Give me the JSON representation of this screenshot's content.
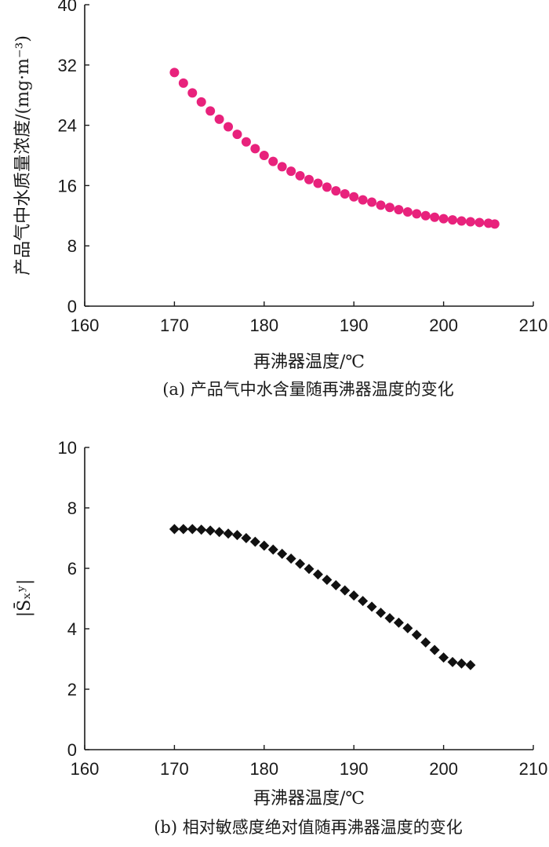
{
  "chart_data": [
    {
      "type": "scatter",
      "xlabel": "再沸器温度/℃",
      "ylabel": "产品气中水质量浓度/(mg·m⁻³)",
      "caption": "(a)  产品气中水含量随再沸器温度的变化",
      "xlim": [
        160,
        210
      ],
      "ylim": [
        0,
        40
      ],
      "xticks": [
        160,
        170,
        180,
        190,
        200,
        210
      ],
      "yticks": [
        0,
        8,
        16,
        24,
        32,
        40
      ],
      "grid": false,
      "marker": "circle",
      "color": "#e8227c",
      "series": [
        {
          "x": [
            170,
            171,
            172,
            173,
            174,
            175,
            176,
            177,
            178,
            179,
            180,
            181,
            182,
            183,
            184,
            185,
            186,
            187,
            188,
            189,
            190,
            191,
            192,
            193,
            194,
            195,
            196,
            197,
            198,
            199,
            200,
            201,
            202,
            203,
            204,
            205,
            205.7
          ],
          "y": [
            31.0,
            29.6,
            28.3,
            27.1,
            25.9,
            24.8,
            23.8,
            22.8,
            21.8,
            20.9,
            20.0,
            19.2,
            18.5,
            17.9,
            17.3,
            16.8,
            16.3,
            15.8,
            15.3,
            14.9,
            14.5,
            14.1,
            13.8,
            13.4,
            13.1,
            12.8,
            12.5,
            12.25,
            12.0,
            11.8,
            11.6,
            11.45,
            11.3,
            11.2,
            11.1,
            11.0,
            10.9
          ]
        }
      ]
    },
    {
      "type": "scatter",
      "xlabel": "再沸器温度/℃",
      "ylabel": "|S̄ₓʸ|",
      "caption": "(b) 相对敏感度绝对值随再沸器温度的变化",
      "xlim": [
        160,
        210
      ],
      "ylim": [
        0,
        10
      ],
      "xticks": [
        160,
        170,
        180,
        190,
        200,
        210
      ],
      "yticks": [
        0,
        2,
        4,
        6,
        8,
        10
      ],
      "grid": false,
      "marker": "diamond",
      "color": "#111111",
      "series": [
        {
          "x": [
            170,
            171,
            172,
            173,
            174,
            175,
            176,
            177,
            178,
            179,
            180,
            181,
            182,
            183,
            184,
            185,
            186,
            187,
            188,
            189,
            190,
            191,
            192,
            193,
            194,
            195,
            196,
            197,
            198,
            199,
            200,
            201,
            202,
            203
          ],
          "y": [
            7.3,
            7.3,
            7.3,
            7.28,
            7.25,
            7.2,
            7.15,
            7.1,
            7.0,
            6.88,
            6.75,
            6.62,
            6.48,
            6.32,
            6.15,
            5.98,
            5.8,
            5.62,
            5.44,
            5.27,
            5.1,
            4.92,
            4.73,
            4.53,
            4.35,
            4.2,
            4.02,
            3.8,
            3.55,
            3.3,
            3.05,
            2.9,
            2.85,
            2.8
          ]
        }
      ]
    }
  ]
}
